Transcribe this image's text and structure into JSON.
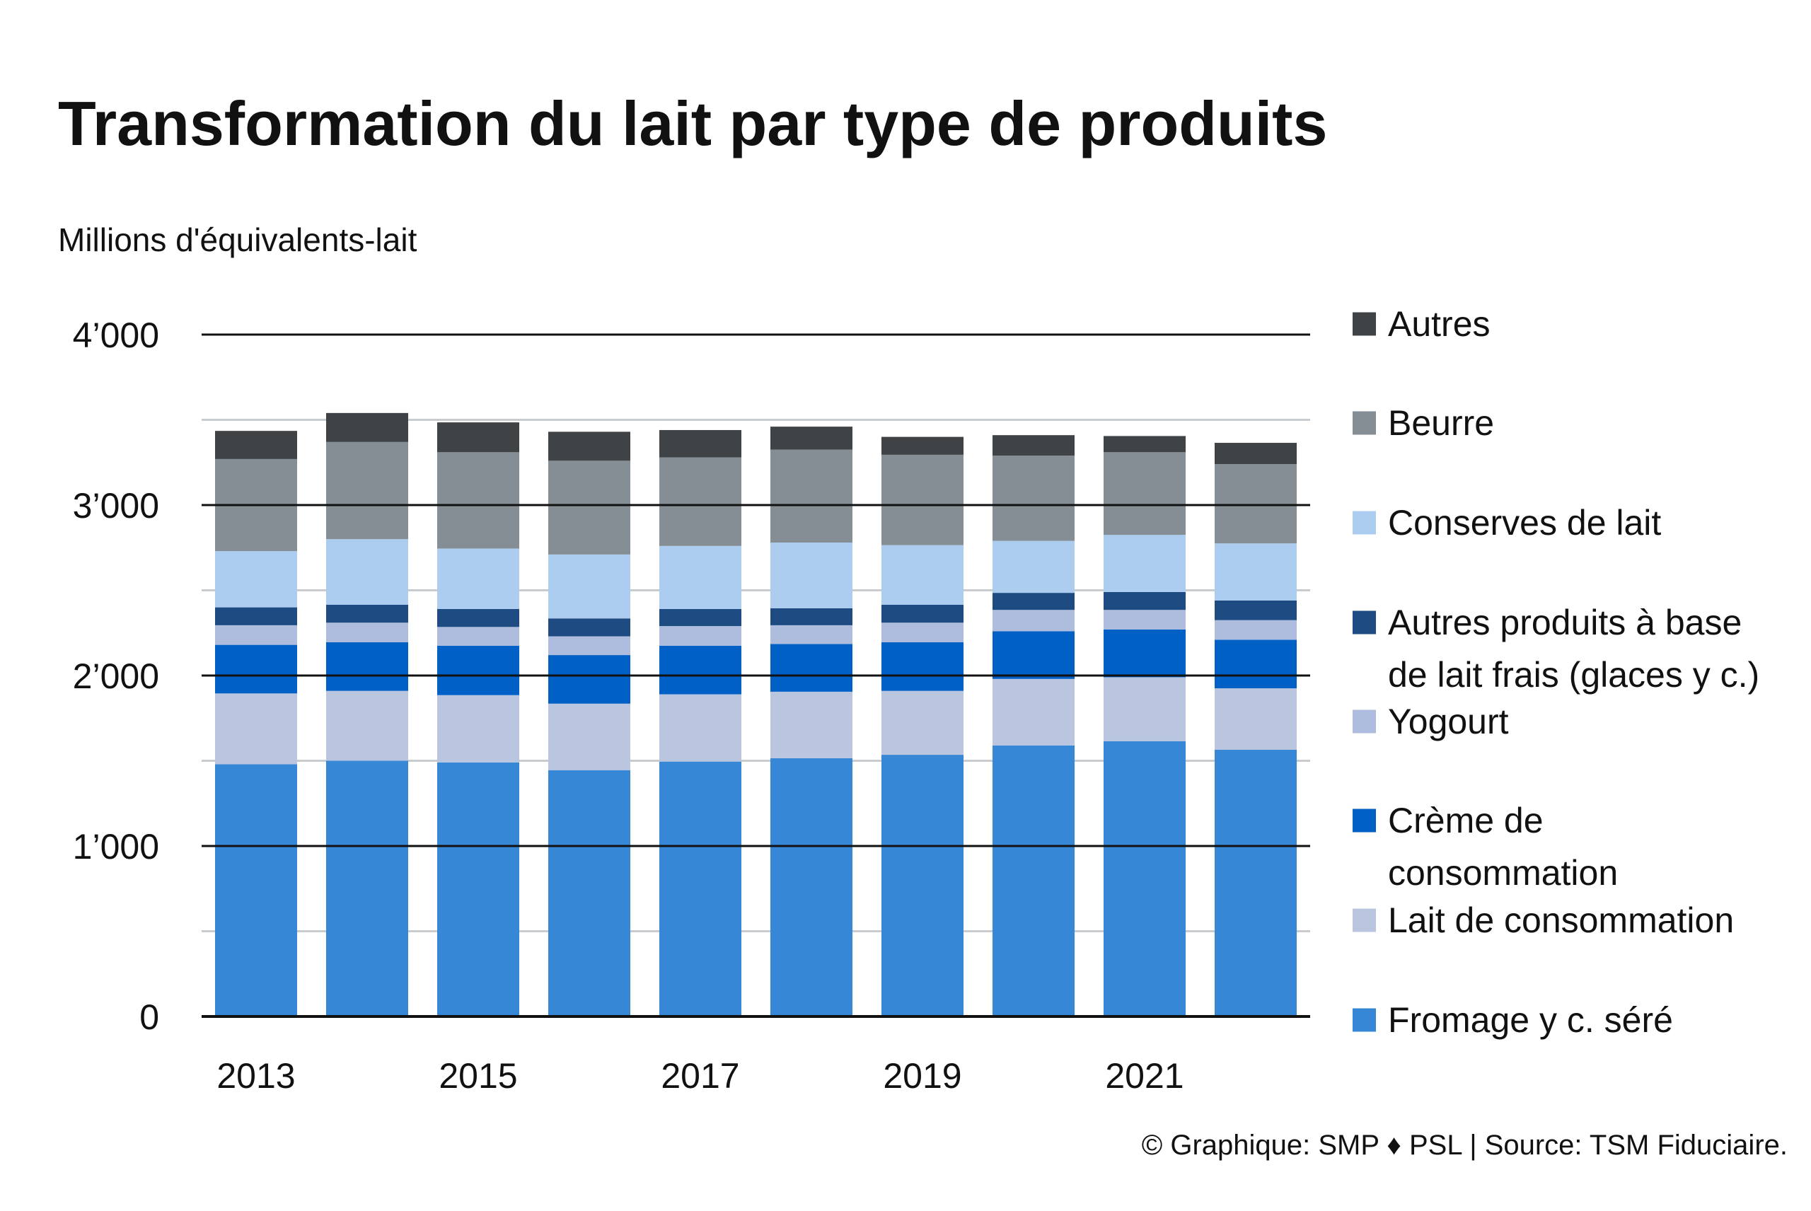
{
  "chart_data": {
    "type": "bar",
    "stacked": true,
    "title": "Transformation du lait par type de produits",
    "ylabel": "Millions d'équivalents-lait",
    "ylim": [
      0,
      4000
    ],
    "y_ticks": [
      {
        "value": 0,
        "label": "0"
      },
      {
        "value": 1000,
        "label": "1’000"
      },
      {
        "value": 2000,
        "label": "2’000"
      },
      {
        "value": 3000,
        "label": "3’000"
      },
      {
        "value": 4000,
        "label": "4’000"
      }
    ],
    "grid": true,
    "legend_position": "right",
    "categories": [
      "2013",
      "2014",
      "2015",
      "2016",
      "2017",
      "2018",
      "2019",
      "2020",
      "2021",
      "2022"
    ],
    "x_tick_labels": [
      "2013",
      "",
      "2015",
      "",
      "2017",
      "",
      "2019",
      "",
      "2021",
      ""
    ],
    "series": [
      {
        "name": "Fromage y c. séré",
        "color": "#3687D6",
        "values": [
          1480,
          1500,
          1490,
          1445,
          1495,
          1515,
          1535,
          1590,
          1615,
          1565
        ]
      },
      {
        "name": "Lait de consommation",
        "color": "#BAC5DF",
        "values": [
          415,
          410,
          395,
          390,
          395,
          390,
          375,
          390,
          375,
          360
        ]
      },
      {
        "name": "Crème de consommation",
        "color": "#0060C5",
        "values": [
          285,
          285,
          290,
          285,
          285,
          280,
          285,
          280,
          280,
          285
        ]
      },
      {
        "name": "Yogourt",
        "color": "#AEBDDD",
        "values": [
          115,
          115,
          110,
          110,
          115,
          110,
          115,
          125,
          115,
          115
        ]
      },
      {
        "name": "Autres produits à base de lait frais (glaces y c.)",
        "color": "#1E4B82",
        "values": [
          105,
          105,
          105,
          105,
          100,
          100,
          105,
          100,
          105,
          115
        ]
      },
      {
        "name": "Conserves de lait",
        "color": "#ADCDF0",
        "values": [
          330,
          385,
          355,
          375,
          370,
          385,
          350,
          305,
          335,
          335
        ]
      },
      {
        "name": "Beurre",
        "color": "#858E94",
        "values": [
          540,
          570,
          565,
          550,
          520,
          545,
          530,
          500,
          485,
          465
        ]
      },
      {
        "name": "Autres",
        "color": "#3F4346",
        "values": [
          165,
          170,
          175,
          170,
          160,
          135,
          105,
          120,
          95,
          125
        ]
      }
    ],
    "legend_order": [
      "Autres",
      "Beurre",
      "Conserves de lait",
      "Autres produits à base de lait frais (glaces y c.)",
      "Yogourt",
      "Crème de consommation",
      "Lait de consommation",
      "Fromage y c. séré"
    ],
    "legend_lines": [
      [
        "Autres"
      ],
      [
        "Beurre"
      ],
      [
        "Conserves de lait"
      ],
      [
        "Autres produits à base",
        "de lait frais (glaces y c.)"
      ],
      [
        "Yogourt"
      ],
      [
        "Crème de",
        "consommation"
      ],
      [
        "Lait de consommation"
      ],
      [
        "Fromage y c. séré"
      ]
    ]
  },
  "credit": "© Graphique: SMP ♦ PSL | Source: TSM Fiduciaire.",
  "colors": {
    "major_grid": "#111111",
    "minor_grid": "#C9CCCE",
    "text": "#111111"
  }
}
